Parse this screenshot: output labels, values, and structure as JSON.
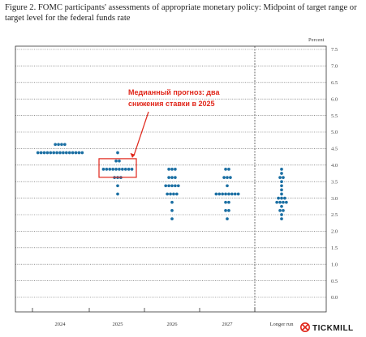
{
  "caption": "Figure 2.  FOMC participants' assessments of appropriate monetary policy:  Midpoint of target range or target level for the federal funds rate",
  "chart_data": {
    "type": "scatter",
    "categories": [
      "2024",
      "2025",
      "2026",
      "2027",
      "Longer run"
    ],
    "ylabel": "Percent",
    "ylim": [
      0,
      7.5
    ],
    "yticks": [
      "0.0",
      "0.5",
      "1.0",
      "1.5",
      "2.0",
      "2.5",
      "3.0",
      "3.5",
      "4.0",
      "4.5",
      "5.0",
      "5.5",
      "6.0",
      "6.5",
      "7.0",
      "7.5"
    ],
    "grid": true,
    "dots": [
      {
        "year": "2024",
        "levels": [
          {
            "y": 4.625,
            "n": 4
          },
          {
            "y": 4.375,
            "n": 15
          }
        ]
      },
      {
        "year": "2025",
        "levels": [
          {
            "y": 4.375,
            "n": 1
          },
          {
            "y": 4.125,
            "n": 2
          },
          {
            "y": 3.875,
            "n": 10
          },
          {
            "y": 3.625,
            "n": 3
          },
          {
            "y": 3.375,
            "n": 1
          },
          {
            "y": 3.125,
            "n": 1
          }
        ]
      },
      {
        "year": "2026",
        "levels": [
          {
            "y": 3.875,
            "n": 3
          },
          {
            "y": 3.625,
            "n": 3
          },
          {
            "y": 3.375,
            "n": 5
          },
          {
            "y": 3.125,
            "n": 4
          },
          {
            "y": 2.875,
            "n": 1
          },
          {
            "y": 2.625,
            "n": 1
          },
          {
            "y": 2.375,
            "n": 1
          }
        ]
      },
      {
        "year": "2027",
        "levels": [
          {
            "y": 3.875,
            "n": 2
          },
          {
            "y": 3.625,
            "n": 3
          },
          {
            "y": 3.375,
            "n": 1
          },
          {
            "y": 3.125,
            "n": 8
          },
          {
            "y": 2.875,
            "n": 2
          },
          {
            "y": 2.625,
            "n": 2
          },
          {
            "y": 2.375,
            "n": 1
          }
        ]
      },
      {
        "year": "Longer run",
        "levels": [
          {
            "y": 3.875,
            "n": 1
          },
          {
            "y": 3.75,
            "n": 1
          },
          {
            "y": 3.625,
            "n": 2
          },
          {
            "y": 3.5,
            "n": 1
          },
          {
            "y": 3.375,
            "n": 1
          },
          {
            "y": 3.25,
            "n": 1
          },
          {
            "y": 3.125,
            "n": 1
          },
          {
            "y": 3.0,
            "n": 3
          },
          {
            "y": 2.875,
            "n": 4
          },
          {
            "y": 2.75,
            "n": 1
          },
          {
            "y": 2.625,
            "n": 2
          },
          {
            "y": 2.5,
            "n": 1
          },
          {
            "y": 2.375,
            "n": 1
          }
        ]
      }
    ],
    "annotation": {
      "text_line1": "Медианный прогноз: два",
      "text_line2": "снижения ставки в 2025",
      "target_year": "2025",
      "target_y": 3.875
    }
  },
  "colors": {
    "dot": "#1b6fa3",
    "annotation": "#e0261a",
    "grid": "#555555"
  },
  "brand": {
    "name": "TICKMILL",
    "icon": "tickmill-logo-icon"
  }
}
